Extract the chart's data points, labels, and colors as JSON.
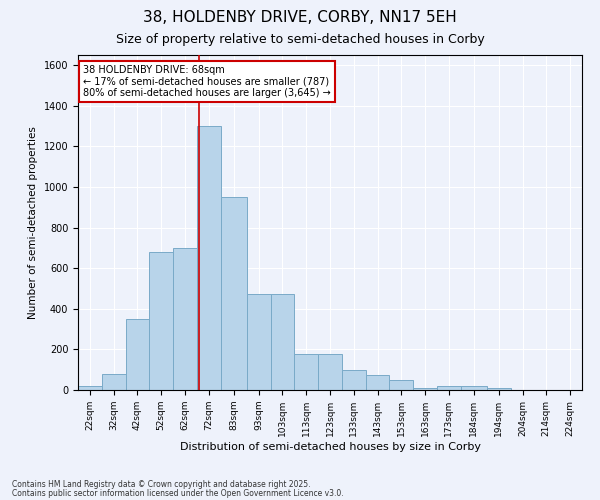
{
  "title1": "38, HOLDENBY DRIVE, CORBY, NN17 5EH",
  "title2": "Size of property relative to semi-detached houses in Corby",
  "xlabel": "Distribution of semi-detached houses by size in Corby",
  "ylabel": "Number of semi-detached properties",
  "bin_labels": [
    "22sqm",
    "32sqm",
    "42sqm",
    "52sqm",
    "62sqm",
    "72sqm",
    "83sqm",
    "93sqm",
    "103sqm",
    "113sqm",
    "123sqm",
    "133sqm",
    "143sqm",
    "153sqm",
    "163sqm",
    "173sqm",
    "184sqm",
    "194sqm",
    "204sqm",
    "214sqm",
    "224sqm"
  ],
  "bar_heights": [
    20,
    80,
    350,
    680,
    700,
    1300,
    950,
    475,
    475,
    175,
    175,
    100,
    75,
    50,
    10,
    20,
    20,
    10,
    0,
    0,
    0
  ],
  "bar_color": "#b8d4ea",
  "bar_edge_color": "#7aaac8",
  "property_line_x": 68,
  "bin_edges": [
    17,
    27,
    37,
    47,
    57,
    67,
    77,
    88,
    98,
    108,
    118,
    128,
    138,
    148,
    158,
    168,
    178,
    189,
    199,
    209,
    219,
    229
  ],
  "annotation_text": "38 HOLDENBY DRIVE: 68sqm\n← 17% of semi-detached houses are smaller (787)\n80% of semi-detached houses are larger (3,645) →",
  "annotation_box_color": "#ffffff",
  "annotation_box_edge": "#cc0000",
  "red_line_color": "#cc0000",
  "ylim": [
    0,
    1650
  ],
  "yticks": [
    0,
    200,
    400,
    600,
    800,
    1000,
    1200,
    1400,
    1600
  ],
  "footer1": "Contains HM Land Registry data © Crown copyright and database right 2025.",
  "footer2": "Contains public sector information licensed under the Open Government Licence v3.0.",
  "background_color": "#eef2fb",
  "plot_bg_color": "#eef2fb",
  "title1_fontsize": 11,
  "title2_fontsize": 9
}
